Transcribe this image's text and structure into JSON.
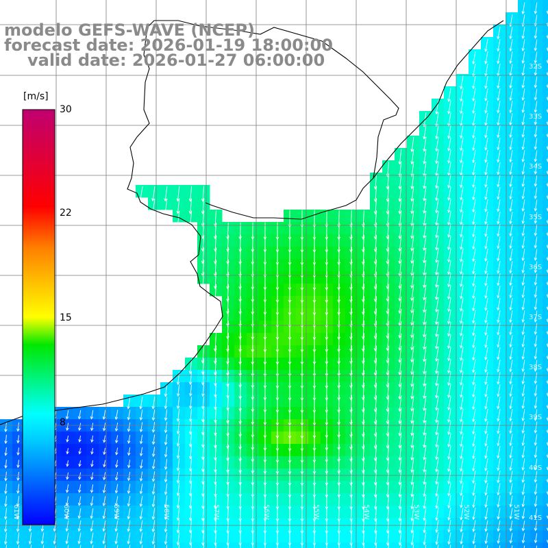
{
  "header": {
    "model_title": "modelo GEFS-WAVE (NCEP)",
    "forecast_date": "forecast date: 2026-01-19 18:00:00",
    "valid_date": "valid date: 2026-01-27 06:00:00"
  },
  "colorbar": {
    "unit": "[m/s]",
    "ticks": [
      "30",
      "22",
      "15",
      "8"
    ],
    "min": 0,
    "max": 30,
    "colors": [
      "#0000ff",
      "#00c8ff",
      "#00ffff",
      "#00e800",
      "#ffff00",
      "#ff8000",
      "#ff0000",
      "#c00070"
    ]
  },
  "grid": {
    "lat_labels": [
      "32S",
      "33S",
      "34S",
      "35S",
      "36S",
      "37S",
      "38S",
      "39S",
      "40S",
      "41S"
    ],
    "lon_labels": [
      "61W",
      "60W",
      "59W",
      "58W",
      "57W",
      "56W",
      "55W",
      "54W",
      "53W",
      "52W",
      "51W"
    ]
  },
  "colors": {
    "land": "#ffffff",
    "grid": "#7a7a7a",
    "coast": "#000000",
    "arrows": "#ffffff"
  }
}
